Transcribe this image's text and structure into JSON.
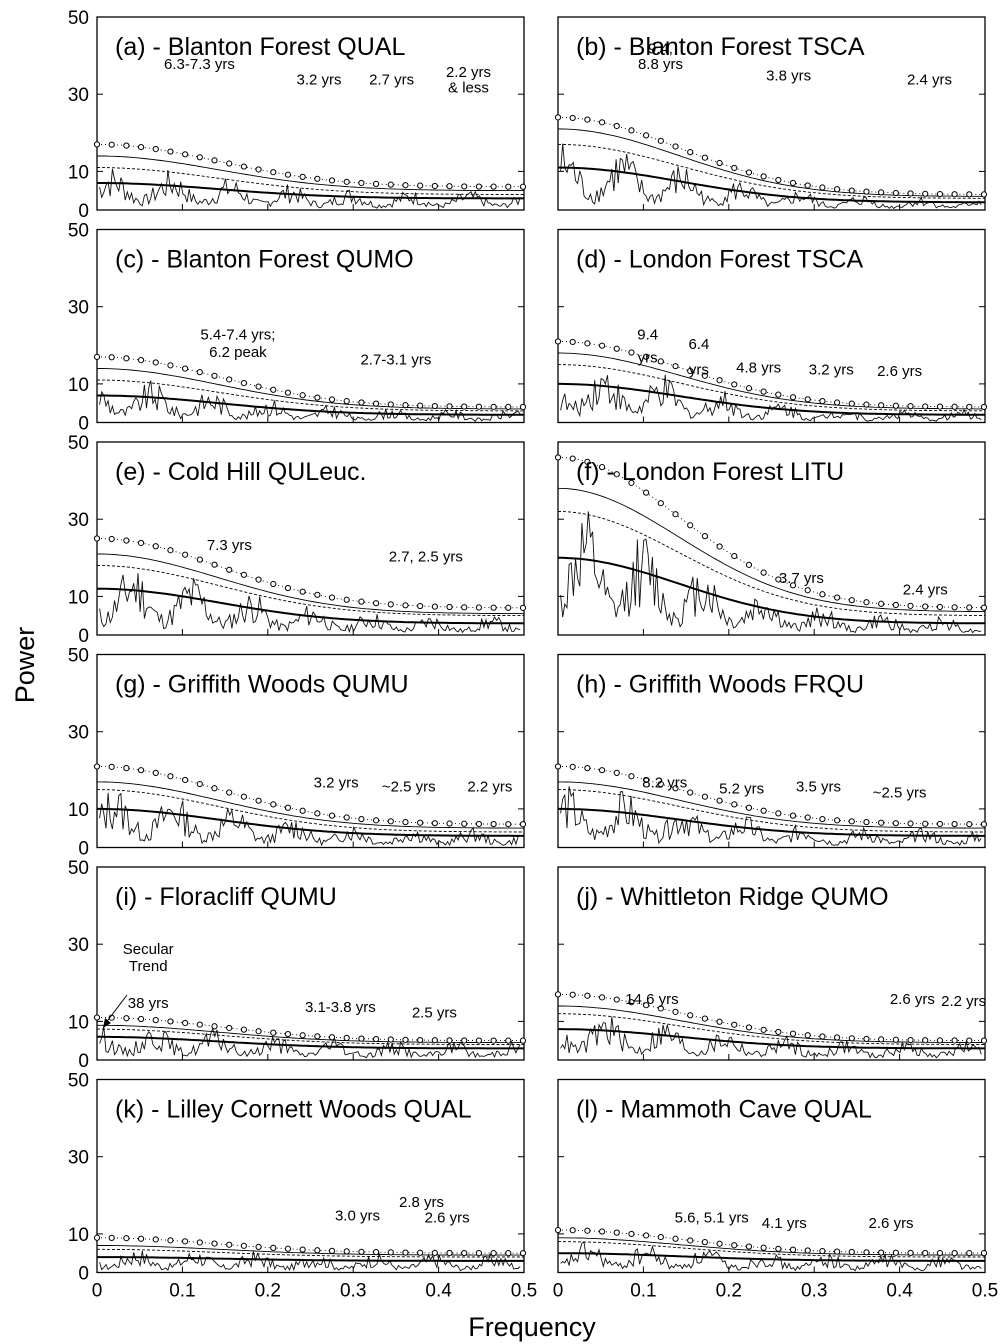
{
  "axes": {
    "ylabel": "Power",
    "xlabel": "Frequency",
    "yticks": [
      "50",
      "30",
      "10",
      "0"
    ],
    "xticks": [
      "0",
      "0.1",
      "0.2",
      "0.3",
      "0.4",
      "0.5"
    ]
  },
  "chart_data": [
    {
      "type": "line",
      "title": "(a) - Blanton Forest QUAL",
      "xlim": [
        0,
        0.5
      ],
      "ylim": [
        0,
        50
      ],
      "annotations": [
        "6.3-7.3 yrs",
        "3.2 yrs",
        "2.7 yrs",
        "2.2 yrs",
        "& less"
      ],
      "levels": {
        "red_noise": [
          7,
          3
        ],
        "p95": [
          11,
          4
        ],
        "p99": [
          14,
          5
        ],
        "p999": [
          17,
          6
        ]
      }
    },
    {
      "type": "line",
      "title": "(b) - Blanton Forest TSCA",
      "xlim": [
        0,
        0.5
      ],
      "ylim": [
        0,
        50
      ],
      "annotations": [
        "9.4,",
        "8.8 yrs",
        "3.8 yrs",
        "2.4 yrs"
      ],
      "levels": {
        "red_noise": [
          11,
          2
        ],
        "p95": [
          17,
          3
        ],
        "p99": [
          21,
          3.5
        ],
        "p999": [
          24,
          4
        ]
      }
    },
    {
      "type": "line",
      "title": "(c) - Blanton Forest QUMO",
      "xlim": [
        0,
        0.5
      ],
      "ylim": [
        0,
        50
      ],
      "annotations": [
        "5.4-7.4 yrs;",
        "6.2 peak",
        "2.7-3.1 yrs"
      ],
      "levels": {
        "red_noise": [
          7,
          2
        ],
        "p95": [
          11,
          3
        ],
        "p99": [
          14,
          3.5
        ],
        "p999": [
          17,
          4
        ]
      }
    },
    {
      "type": "line",
      "title": "(d) - London Forest TSCA",
      "xlim": [
        0,
        0.5
      ],
      "ylim": [
        0,
        50
      ],
      "annotations": [
        "9.4",
        "yrs",
        "6.4",
        "yrs",
        "4.8 yrs",
        "3.2 yrs",
        "2.6 yrs"
      ],
      "levels": {
        "red_noise": [
          10,
          2
        ],
        "p95": [
          15,
          3
        ],
        "p99": [
          18,
          3.5
        ],
        "p999": [
          21,
          4
        ]
      }
    },
    {
      "type": "line",
      "title": "(e) - Cold Hill QULeuc.",
      "xlim": [
        0,
        0.5
      ],
      "ylim": [
        0,
        50
      ],
      "annotations": [
        "7.3 yrs",
        "2.7, 2.5 yrs"
      ],
      "levels": {
        "red_noise": [
          12,
          3
        ],
        "p95": [
          18,
          5
        ],
        "p99": [
          21,
          5.5
        ],
        "p999": [
          25,
          7
        ]
      }
    },
    {
      "type": "line",
      "title": "(f) - London Forest LITU",
      "xlim": [
        0,
        0.5
      ],
      "ylim": [
        0,
        50
      ],
      "annotations": [
        "3.7 yrs",
        "2.4 yrs"
      ],
      "levels": {
        "red_noise": [
          20,
          3
        ],
        "p95": [
          32,
          5
        ],
        "p99": [
          38,
          6
        ],
        "p999": [
          46,
          7
        ]
      }
    },
    {
      "type": "line",
      "title": "(g) - Griffith Woods QUMU",
      "xlim": [
        0,
        0.5
      ],
      "ylim": [
        0,
        50
      ],
      "annotations": [
        "3.2 yrs",
        "~2.5 yrs",
        "2.2 yrs"
      ],
      "levels": {
        "red_noise": [
          10,
          3
        ],
        "p95": [
          15,
          4
        ],
        "p99": [
          17,
          5
        ],
        "p999": [
          21,
          6
        ]
      }
    },
    {
      "type": "line",
      "title": "(h) - Griffith Woods FRQU",
      "xlim": [
        0,
        0.5
      ],
      "ylim": [
        0,
        50
      ],
      "annotations": [
        "8.2 yrs",
        "5.2 yrs",
        "3.5 yrs",
        "~2.5 yrs"
      ],
      "levels": {
        "red_noise": [
          10,
          3
        ],
        "p95": [
          15,
          4
        ],
        "p99": [
          17,
          5
        ],
        "p999": [
          21,
          6
        ]
      }
    },
    {
      "type": "line",
      "title": "(i) - Floracliff QUMU",
      "xlim": [
        0,
        0.5
      ],
      "ylim": [
        0,
        50
      ],
      "annotations": [
        "Secular",
        "Trend",
        "38 yrs",
        "3.1-3.8 yrs",
        "2.5 yrs"
      ],
      "levels": {
        "red_noise": [
          6,
          3
        ],
        "p95": [
          8,
          4
        ],
        "p99": [
          9,
          4.5
        ],
        "p999": [
          11,
          5
        ]
      }
    },
    {
      "type": "line",
      "title": "(j) - Whittleton Ridge QUMO",
      "xlim": [
        0,
        0.5
      ],
      "ylim": [
        0,
        50
      ],
      "annotations": [
        "14.6 yrs",
        "2.6 yrs",
        "2.2 yrs"
      ],
      "levels": {
        "red_noise": [
          8,
          3
        ],
        "p95": [
          12,
          4
        ],
        "p99": [
          14,
          4.5
        ],
        "p999": [
          17,
          5
        ]
      }
    },
    {
      "type": "line",
      "title": "(k) - Lilley Cornett Woods QUAL",
      "xlim": [
        0,
        0.5
      ],
      "ylim": [
        0,
        50
      ],
      "annotations": [
        "3.0 yrs",
        "2.8 yrs",
        "2.6 yrs"
      ],
      "levels": {
        "red_noise": [
          4,
          3
        ],
        "p95": [
          6,
          4
        ],
        "p99": [
          7,
          4.5
        ],
        "p999": [
          9,
          5
        ]
      }
    },
    {
      "type": "line",
      "title": "(l) - Mammoth Cave QUAL",
      "xlim": [
        0,
        0.5
      ],
      "ylim": [
        0,
        50
      ],
      "annotations": [
        "5.6, 5.1 yrs",
        "4.1 yrs",
        "2.6 yrs"
      ],
      "levels": {
        "red_noise": [
          5,
          3
        ],
        "p95": [
          8,
          4
        ],
        "p99": [
          9,
          4.5
        ],
        "p999": [
          11,
          5
        ]
      }
    }
  ]
}
